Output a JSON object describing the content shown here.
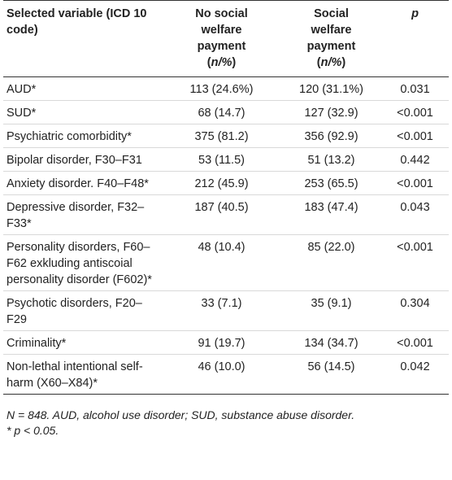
{
  "table": {
    "headers": [
      {
        "line": "Selected variable (ICD 10 code)",
        "unit": ""
      },
      {
        "line": "No social welfare payment",
        "unit": "n/%"
      },
      {
        "line": "Social welfare payment",
        "unit": "n/%"
      },
      {
        "line": "p",
        "unit": ""
      }
    ],
    "rows": [
      [
        "AUD*",
        "113 (24.6%)",
        "120 (31.1%)",
        "0.031"
      ],
      [
        "SUD*",
        "68 (14.7)",
        "127 (32.9)",
        "<0.001"
      ],
      [
        "Psychiatric comorbidity*",
        "375 (81.2)",
        "356 (92.9)",
        "<0.001"
      ],
      [
        "Bipolar disorder, F30–F31",
        "53 (11.5)",
        "51 (13.2)",
        "0.442"
      ],
      [
        "Anxiety disorder. F40–F48*",
        "212 (45.9)",
        "253 (65.5)",
        "<0.001"
      ],
      [
        "Depressive disorder, F32–F33*",
        "187 (40.5)",
        "183 (47.4)",
        "0.043"
      ],
      [
        "Personality disorders, F60–F62 exkluding antiscoial personality disorder (F602)*",
        "48 (10.4)",
        "85 (22.0)",
        "<0.001"
      ],
      [
        "Psychotic disorders, F20–F29",
        "33 (7.1)",
        "35 (9.1)",
        "0.304"
      ],
      [
        "Criminality*",
        "91 (19.7)",
        "134 (34.7)",
        "<0.001"
      ],
      [
        "Non-lethal intentional self-harm (X60–X84)*",
        "46 (10.0)",
        "56 (14.5)",
        "0.042"
      ]
    ]
  },
  "notes": {
    "line1": "N = 848. AUD, alcohol use disorder; SUD, substance abuse disorder.",
    "line2": "* p < 0.05."
  }
}
